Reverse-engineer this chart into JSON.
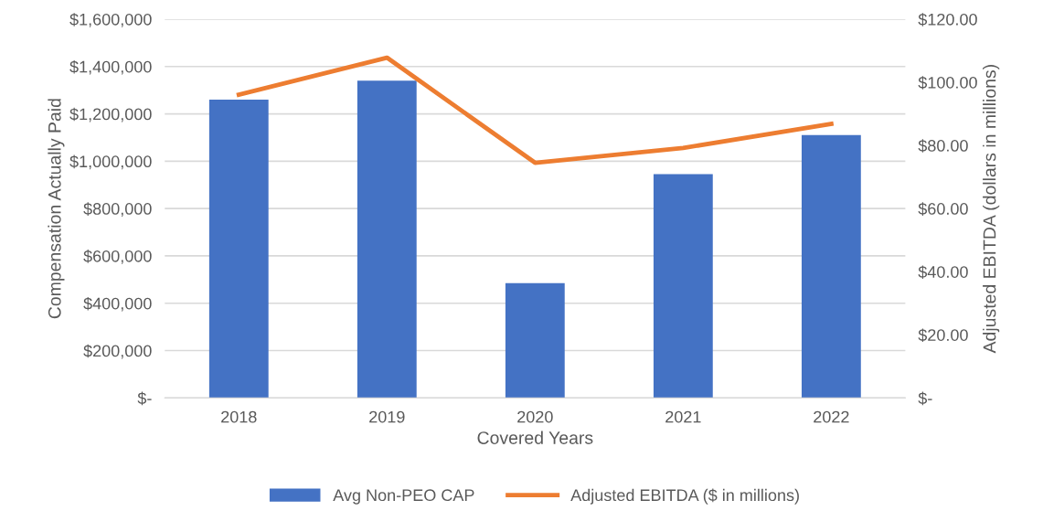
{
  "chart_data": {
    "type": "bar",
    "xlabel": "Covered Years",
    "ylabel": "Compensation Actually Paid",
    "y2label": "Adjusted EBITDA (dollars in millions)",
    "categories": [
      "2018",
      "2019",
      "2020",
      "2021",
      "2022"
    ],
    "series": [
      {
        "name": "Avg Non-PEO CAP",
        "color": "#4472c4",
        "values": [
          1260000,
          1340000,
          485000,
          945000,
          1110000
        ]
      },
      {
        "name": "Adjusted EBITDA ($ in millions)",
        "color": "#ed7d31",
        "type": "line",
        "axis": "y2",
        "values": [
          96.1,
          107.8,
          74.5,
          79.2,
          86.8
        ]
      }
    ],
    "ylim": [
      0,
      1600000
    ],
    "yticks": [
      {
        "value": 0,
        "label": "$-"
      },
      {
        "value": 200000,
        "label": "$200,000"
      },
      {
        "value": 400000,
        "label": "$400,000"
      },
      {
        "value": 600000,
        "label": "$600,000"
      },
      {
        "value": 800000,
        "label": "$800,000"
      },
      {
        "value": 1000000,
        "label": "$1,000,000"
      },
      {
        "value": 1200000,
        "label": "$1,200,000"
      },
      {
        "value": 1400000,
        "label": "$1,400,000"
      },
      {
        "value": 1600000,
        "label": "$1,600,000"
      }
    ],
    "y2lim": [
      0,
      120
    ],
    "y2ticks": [
      {
        "value": 0,
        "label": "$-"
      },
      {
        "value": 20,
        "label": "$20.00"
      },
      {
        "value": 40,
        "label": "$40.00"
      },
      {
        "value": 60,
        "label": "$60.00"
      },
      {
        "value": 80,
        "label": "$80.00"
      },
      {
        "value": 100,
        "label": "$100.00"
      },
      {
        "value": 120,
        "label": "$120.00"
      }
    ],
    "grid": "y",
    "legend": "bottom",
    "marker": "none"
  }
}
